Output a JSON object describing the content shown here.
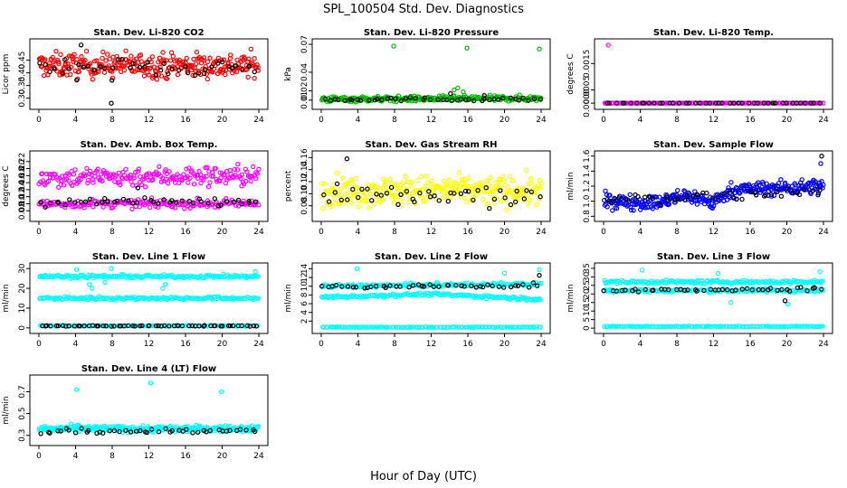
{
  "figure": {
    "title": "SPL_100504  Std. Dev. Diagnostics",
    "xlabel": "Hour of Day (UTC)"
  },
  "chart_data": [
    {
      "type": "scatter",
      "title": "Stan. Dev. Li-820 CO2",
      "ylabel": "Licor ppm",
      "xlim": [
        0,
        24
      ],
      "ylim": [
        0.27,
        0.52
      ],
      "xticks": [
        0,
        4,
        8,
        12,
        16,
        20,
        24
      ],
      "yticks": [
        0.3,
        0.35,
        0.4,
        0.45
      ],
      "ytick_labels": [
        "0.30",
        "0.35",
        "0.40",
        "0.45"
      ],
      "series": [
        {
          "color": "#ff0000",
          "pattern": "band",
          "values": [
            {
              "x": 0,
              "y": 0.43
            },
            {
              "x": 24,
              "y": 0.43
            }
          ],
          "spread": 0.05,
          "n": 300,
          "outliers": []
        },
        {
          "color": "#000000",
          "pattern": "band",
          "values": [
            {
              "x": 0,
              "y": 0.42
            },
            {
              "x": 24,
              "y": 0.42
            }
          ],
          "spread": 0.04,
          "n": 45,
          "outliers": [
            {
              "x": 4.6,
              "y": 0.51
            },
            {
              "x": 7.9,
              "y": 0.28
            }
          ]
        }
      ]
    },
    {
      "type": "scatter",
      "title": "Stan. Dev. Li-820 Pressure",
      "ylabel": "kPa",
      "xlim": [
        0,
        24
      ],
      "ylim": [
        0.004,
        0.072
      ],
      "xticks": [
        0,
        4,
        8,
        12,
        16,
        20,
        24
      ],
      "yticks": [
        0.01,
        0.02,
        0.04,
        0.07
      ],
      "ytick_labels": [
        "0.01",
        "0.02",
        "0.04",
        "0.07"
      ],
      "series": [
        {
          "color": "#00bb00",
          "pattern": "band",
          "values": [
            {
              "x": 0,
              "y": 0.011
            },
            {
              "x": 24,
              "y": 0.012
            }
          ],
          "spread": 0.003,
          "n": 260,
          "outliers": [
            {
              "x": 7.9,
              "y": 0.068
            },
            {
              "x": 15.9,
              "y": 0.066
            },
            {
              "x": 23.8,
              "y": 0.065
            },
            {
              "x": 14.5,
              "y": 0.021
            },
            {
              "x": 14.9,
              "y": 0.023
            },
            {
              "x": 15.5,
              "y": 0.019
            }
          ]
        },
        {
          "color": "#000000",
          "pattern": "band",
          "values": [
            {
              "x": 0,
              "y": 0.011
            },
            {
              "x": 24,
              "y": 0.011
            }
          ],
          "spread": 0.002,
          "n": 45,
          "outliers": [
            {
              "x": 14.1,
              "y": 0.017
            },
            {
              "x": 17.8,
              "y": 0.015
            }
          ]
        }
      ]
    },
    {
      "type": "scatter",
      "title": "Stan. Dev. Li-820 Temp.",
      "ylabel": "degrees C",
      "xlim": [
        0,
        24
      ],
      "ylim": [
        -0.0001,
        0.0023
      ],
      "xticks": [
        0,
        4,
        8,
        12,
        16,
        20,
        24
      ],
      "yticks": [
        0.0,
        0.0005,
        0.0015
      ],
      "ytick_labels": [
        "0.0000",
        "0.0005",
        "0.0015"
      ],
      "series": [
        {
          "color": "#ff00ff",
          "pattern": "band",
          "values": [
            {
              "x": 0,
              "y": 0.0
            },
            {
              "x": 24,
              "y": 0.0
            }
          ],
          "spread": 0.0,
          "n": 160,
          "outliers": [
            {
              "x": 0.5,
              "y": 0.0022
            }
          ]
        },
        {
          "color": "#000000",
          "pattern": "band",
          "values": [
            {
              "x": 0,
              "y": 0.0
            },
            {
              "x": 24,
              "y": 0.0
            }
          ],
          "spread": 0.0,
          "n": 45,
          "outliers": []
        }
      ]
    },
    {
      "type": "scatter",
      "title": "Stan. Dev. Amb. Box Temp.",
      "ylabel": "degrees C",
      "xlim": [
        0,
        24
      ],
      "ylim": [
        0.06,
        0.24
      ],
      "xticks": [
        0,
        4,
        8,
        12,
        16,
        20,
        24
      ],
      "yticks": [
        0.08,
        0.1,
        0.12,
        0.14,
        0.16,
        0.18,
        0.2,
        0.22
      ],
      "ytick_labels": [
        "0.08",
        "0.10",
        "0.12",
        "0.14",
        "0.16",
        "0.18",
        "0.20",
        "0.22"
      ],
      "series": [
        {
          "color": "#ff00ff",
          "pattern": "band",
          "values": [
            {
              "x": 0,
              "y": 0.175
            },
            {
              "x": 24,
              "y": 0.18
            }
          ],
          "spread": 0.03,
          "n": 220,
          "outliers": []
        },
        {
          "color": "#ff00ff",
          "pattern": "band",
          "values": [
            {
              "x": 0,
              "y": 0.1
            },
            {
              "x": 24,
              "y": 0.1
            }
          ],
          "spread": 0.012,
          "n": 180,
          "outliers": []
        },
        {
          "color": "#000000",
          "pattern": "band",
          "values": [
            {
              "x": 0,
              "y": 0.105
            },
            {
              "x": 24,
              "y": 0.105
            }
          ],
          "spread": 0.012,
          "n": 45,
          "outliers": [
            {
              "x": 10.8,
              "y": 0.145
            }
          ]
        }
      ]
    },
    {
      "type": "scatter",
      "title": "Stan. Dev. Gas Stream RH",
      "ylabel": "percent",
      "xlim": [
        0,
        24
      ],
      "ylim": [
        0.06,
        0.165
      ],
      "xticks": [
        0,
        4,
        8,
        12,
        16,
        20,
        24
      ],
      "yticks": [
        0.08,
        0.1,
        0.12,
        0.14,
        0.16
      ],
      "ytick_labels": [
        "0.08",
        "0.10",
        "0.12",
        "0.14",
        "0.16"
      ],
      "series": [
        {
          "color": "#ffff00",
          "pattern": "band",
          "values": [
            {
              "x": 0,
              "y": 0.105
            },
            {
              "x": 24,
              "y": 0.105
            }
          ],
          "spread": 0.025,
          "n": 300,
          "outliers": []
        },
        {
          "color": "#000000",
          "pattern": "band",
          "values": [
            {
              "x": 0,
              "y": 0.095
            },
            {
              "x": 24,
              "y": 0.095
            }
          ],
          "spread": 0.02,
          "n": 45,
          "outliers": [
            {
              "x": 2.8,
              "y": 0.158
            }
          ]
        }
      ]
    },
    {
      "type": "scatter",
      "title": "Stan. Dev. Sample Flow",
      "ylabel": "ml/min",
      "xlim": [
        0,
        24
      ],
      "ylim": [
        0.78,
        1.62
      ],
      "xticks": [
        0,
        4,
        8,
        12,
        16,
        20,
        24
      ],
      "yticks": [
        0.8,
        1.0,
        1.2,
        1.4,
        1.6
      ],
      "ytick_labels": [
        "0.8",
        "1.0",
        "1.2",
        "1.4",
        "1.6"
      ],
      "series": [
        {
          "color": "#0000ff",
          "pattern": "band",
          "values": [
            {
              "x": 0,
              "y": 1.0
            },
            {
              "x": 6,
              "y": 0.98
            },
            {
              "x": 9,
              "y": 1.08
            },
            {
              "x": 12,
              "y": 0.98
            },
            {
              "x": 14,
              "y": 1.15
            },
            {
              "x": 24,
              "y": 1.2
            }
          ],
          "spread": 0.1,
          "n": 320,
          "outliers": [
            {
              "x": 23.7,
              "y": 1.5
            }
          ]
        },
        {
          "color": "#000000",
          "pattern": "band",
          "values": [
            {
              "x": 0,
              "y": 1.0
            },
            {
              "x": 24,
              "y": 1.15
            }
          ],
          "spread": 0.08,
          "n": 45,
          "outliers": [
            {
              "x": 23.8,
              "y": 1.6
            }
          ]
        }
      ]
    },
    {
      "type": "scatter",
      "title": "Stan. Dev. Line 1 Flow",
      "ylabel": "ml/min",
      "xlim": [
        0,
        24
      ],
      "ylim": [
        -1,
        31
      ],
      "xticks": [
        0,
        4,
        8,
        12,
        16,
        20,
        24
      ],
      "yticks": [
        0,
        10,
        20,
        30
      ],
      "ytick_labels": [
        "0",
        "10",
        "20",
        "30"
      ],
      "series": [
        {
          "color": "#00ffff",
          "pattern": "band",
          "values": [
            {
              "x": 0,
              "y": 26
            },
            {
              "x": 24,
              "y": 26
            }
          ],
          "spread": 0.8,
          "n": 170,
          "outliers": [
            {
              "x": 5.5,
              "y": 22
            },
            {
              "x": 5.8,
              "y": 20
            },
            {
              "x": 7.2,
              "y": 23
            },
            {
              "x": 4.1,
              "y": 29.5
            },
            {
              "x": 7.9,
              "y": 30
            },
            {
              "x": 23.6,
              "y": 28.5
            }
          ]
        },
        {
          "color": "#00ffff",
          "pattern": "band",
          "values": [
            {
              "x": 0,
              "y": 15
            },
            {
              "x": 24,
              "y": 15
            }
          ],
          "spread": 0.8,
          "n": 170,
          "outliers": [
            {
              "x": 13.5,
              "y": 20
            },
            {
              "x": 13.8,
              "y": 22
            }
          ]
        },
        {
          "color": "#00ffff",
          "pattern": "band",
          "values": [
            {
              "x": 0,
              "y": 1
            },
            {
              "x": 24,
              "y": 1
            }
          ],
          "spread": 0.2,
          "n": 120,
          "outliers": []
        },
        {
          "color": "#000000",
          "pattern": "band",
          "values": [
            {
              "x": 0,
              "y": 1
            },
            {
              "x": 24,
              "y": 1
            }
          ],
          "spread": 0.2,
          "n": 60,
          "outliers": []
        }
      ]
    },
    {
      "type": "scatter",
      "title": "Stan. Dev. Line 2 Flow",
      "ylabel": "ml/min",
      "xlim": [
        0,
        24
      ],
      "ylim": [
        0,
        14.5
      ],
      "xticks": [
        0,
        4,
        8,
        12,
        16,
        20,
        24
      ],
      "yticks": [
        2,
        4,
        6,
        8,
        10,
        12,
        14
      ],
      "ytick_labels": [
        "2",
        "4",
        "6",
        "8",
        "10",
        "12",
        "14"
      ],
      "series": [
        {
          "color": "#00ffff",
          "pattern": "band",
          "values": [
            {
              "x": 0,
              "y": 10
            },
            {
              "x": 24,
              "y": 10.5
            }
          ],
          "spread": 0.4,
          "n": 170,
          "outliers": [
            {
              "x": 3.9,
              "y": 14
            },
            {
              "x": 23.8,
              "y": 13.8
            },
            {
              "x": 20,
              "y": 13
            }
          ]
        },
        {
          "color": "#00ffff",
          "pattern": "band",
          "values": [
            {
              "x": 0,
              "y": 7.5
            },
            {
              "x": 12,
              "y": 8.2
            },
            {
              "x": 24,
              "y": 7.0
            }
          ],
          "spread": 0.35,
          "n": 170,
          "outliers": []
        },
        {
          "color": "#00ffff",
          "pattern": "band",
          "values": [
            {
              "x": 0,
              "y": 0.6
            },
            {
              "x": 24,
              "y": 0.6
            }
          ],
          "spread": 0.1,
          "n": 120,
          "outliers": []
        },
        {
          "color": "#000000",
          "pattern": "band",
          "values": [
            {
              "x": 0,
              "y": 9.8
            },
            {
              "x": 24,
              "y": 10.2
            }
          ],
          "spread": 0.5,
          "n": 45,
          "outliers": [
            {
              "x": 23.8,
              "y": 12.5
            }
          ]
        }
      ]
    },
    {
      "type": "scatter",
      "title": "Stan. Dev. Line 3 Flow",
      "ylabel": "ml/min",
      "xlim": [
        0,
        24
      ],
      "ylim": [
        -1,
        36
      ],
      "xticks": [
        0,
        4,
        8,
        12,
        16,
        20,
        24
      ],
      "yticks": [
        0,
        5,
        10,
        15,
        20,
        25,
        30,
        35
      ],
      "ytick_labels": [
        "0",
        "5",
        "10",
        "15",
        "20",
        "25",
        "30",
        "35"
      ],
      "series": [
        {
          "color": "#00ffff",
          "pattern": "band",
          "values": [
            {
              "x": 0,
              "y": 27
            },
            {
              "x": 24,
              "y": 27
            }
          ],
          "spread": 1.0,
          "n": 170,
          "outliers": [
            {
              "x": 4.2,
              "y": 34
            },
            {
              "x": 12.5,
              "y": 32
            },
            {
              "x": 23.6,
              "y": 33
            }
          ]
        },
        {
          "color": "#00ffff",
          "pattern": "band",
          "values": [
            {
              "x": 0,
              "y": 22
            },
            {
              "x": 24,
              "y": 22
            }
          ],
          "spread": 1.0,
          "n": 170,
          "outliers": [
            {
              "x": 13.9,
              "y": 15
            },
            {
              "x": 20.1,
              "y": 14
            }
          ]
        },
        {
          "color": "#00ffff",
          "pattern": "band",
          "values": [
            {
              "x": 0,
              "y": 1
            },
            {
              "x": 24,
              "y": 1
            }
          ],
          "spread": 0.2,
          "n": 120,
          "outliers": []
        },
        {
          "color": "#000000",
          "pattern": "band",
          "values": [
            {
              "x": 0,
              "y": 22
            },
            {
              "x": 24,
              "y": 23
            }
          ],
          "spread": 1.0,
          "n": 45,
          "outliers": [
            {
              "x": 19.8,
              "y": 16
            }
          ]
        }
      ]
    },
    {
      "type": "scatter",
      "title": "Stan. Dev. Line 4 (LT) Flow",
      "ylabel": "ml/min",
      "xlim": [
        0,
        24
      ],
      "ylim": [
        0.24,
        0.82
      ],
      "xticks": [
        0,
        4,
        8,
        12,
        16,
        20,
        24
      ],
      "yticks": [
        0.3,
        0.5,
        0.7
      ],
      "ytick_labels": [
        "0.3",
        "0.5",
        "0.7"
      ],
      "series": [
        {
          "color": "#00ffff",
          "pattern": "band",
          "values": [
            {
              "x": 0,
              "y": 0.36
            },
            {
              "x": 24,
              "y": 0.36
            }
          ],
          "spread": 0.03,
          "n": 280,
          "outliers": [
            {
              "x": 4.1,
              "y": 0.72
            },
            {
              "x": 12.2,
              "y": 0.78
            },
            {
              "x": 19.9,
              "y": 0.7
            }
          ]
        },
        {
          "color": "#000000",
          "pattern": "band",
          "values": [
            {
              "x": 0,
              "y": 0.34
            },
            {
              "x": 24,
              "y": 0.34
            }
          ],
          "spread": 0.03,
          "n": 45,
          "outliers": []
        }
      ]
    }
  ]
}
